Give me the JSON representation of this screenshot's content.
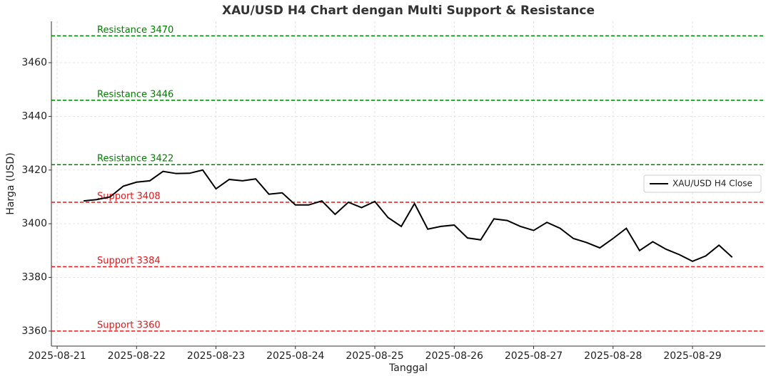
{
  "chart_data": {
    "type": "line",
    "title": "XAU/USD H4 Chart dengan Multi Support & Resistance",
    "x_label": "Tanggal",
    "y_label": "Harga (USD)",
    "x": [
      "2025-08-21T08:00",
      "2025-08-21T12:00",
      "2025-08-21T16:00",
      "2025-08-21T20:00",
      "2025-08-22T00:00",
      "2025-08-22T04:00",
      "2025-08-22T08:00",
      "2025-08-22T12:00",
      "2025-08-22T16:00",
      "2025-08-22T20:00",
      "2025-08-23T00:00",
      "2025-08-23T04:00",
      "2025-08-23T08:00",
      "2025-08-23T12:00",
      "2025-08-23T16:00",
      "2025-08-23T20:00",
      "2025-08-24T00:00",
      "2025-08-24T04:00",
      "2025-08-24T08:00",
      "2025-08-24T12:00",
      "2025-08-24T16:00",
      "2025-08-24T20:00",
      "2025-08-25T00:00",
      "2025-08-25T04:00",
      "2025-08-25T08:00",
      "2025-08-25T12:00",
      "2025-08-25T16:00",
      "2025-08-25T20:00",
      "2025-08-26T00:00",
      "2025-08-26T04:00",
      "2025-08-26T08:00",
      "2025-08-26T12:00",
      "2025-08-26T16:00",
      "2025-08-26T20:00",
      "2025-08-27T00:00",
      "2025-08-27T04:00",
      "2025-08-27T08:00",
      "2025-08-27T12:00",
      "2025-08-27T16:00",
      "2025-08-27T20:00",
      "2025-08-28T00:00",
      "2025-08-28T04:00",
      "2025-08-28T08:00",
      "2025-08-28T12:00",
      "2025-08-28T16:00",
      "2025-08-28T20:00",
      "2025-08-29T00:00",
      "2025-08-29T04:00",
      "2025-08-29T08:00",
      "2025-08-29T12:00"
    ],
    "series": [
      {
        "name": "XAU/USD H4 Close",
        "color": "#000000",
        "values": [
          3408.5,
          3409,
          3410,
          3414,
          3415.5,
          3416,
          3419.5,
          3418.7,
          3418.8,
          3420,
          3413,
          3416.5,
          3416,
          3416.7,
          3411,
          3411.5,
          3407,
          3407,
          3408.5,
          3403.5,
          3408,
          3406,
          3408.3,
          3402.3,
          3399,
          3407.5,
          3398,
          3399,
          3399.5,
          3394.7,
          3394,
          3401.8,
          3401.2,
          3399,
          3397.5,
          3400.5,
          3398.3,
          3394.5,
          3393,
          3391,
          3394.5,
          3398.3,
          3390,
          3393.3,
          3390.5,
          3388.5,
          3386,
          3388,
          3392,
          3387.5
        ]
      }
    ],
    "reference_lines": [
      {
        "value": 3470,
        "label": "Resistance 3470",
        "color": "#008000"
      },
      {
        "value": 3446,
        "label": "Resistance 3446",
        "color": "#008000"
      },
      {
        "value": 3422,
        "label": "Resistance 3422",
        "color": "#008000"
      },
      {
        "value": 3408,
        "label": "Support 3408",
        "color": "#e31a1c"
      },
      {
        "value": 3384,
        "label": "Support 3384",
        "color": "#e31a1c"
      },
      {
        "value": 3360,
        "label": "Support 3360",
        "color": "#e31a1c"
      }
    ],
    "xlim": [
      "2025-08-20T22:16",
      "2025-08-29T22:00"
    ],
    "xticks": [
      "2025-08-21",
      "2025-08-22",
      "2025-08-23",
      "2025-08-24",
      "2025-08-25",
      "2025-08-26",
      "2025-08-27",
      "2025-08-28",
      "2025-08-29"
    ],
    "ylim": [
      3354.4,
      3475.4
    ],
    "yticks": [
      3360,
      3380,
      3400,
      3420,
      3440,
      3460
    ],
    "grid": true,
    "legend": "center right"
  }
}
